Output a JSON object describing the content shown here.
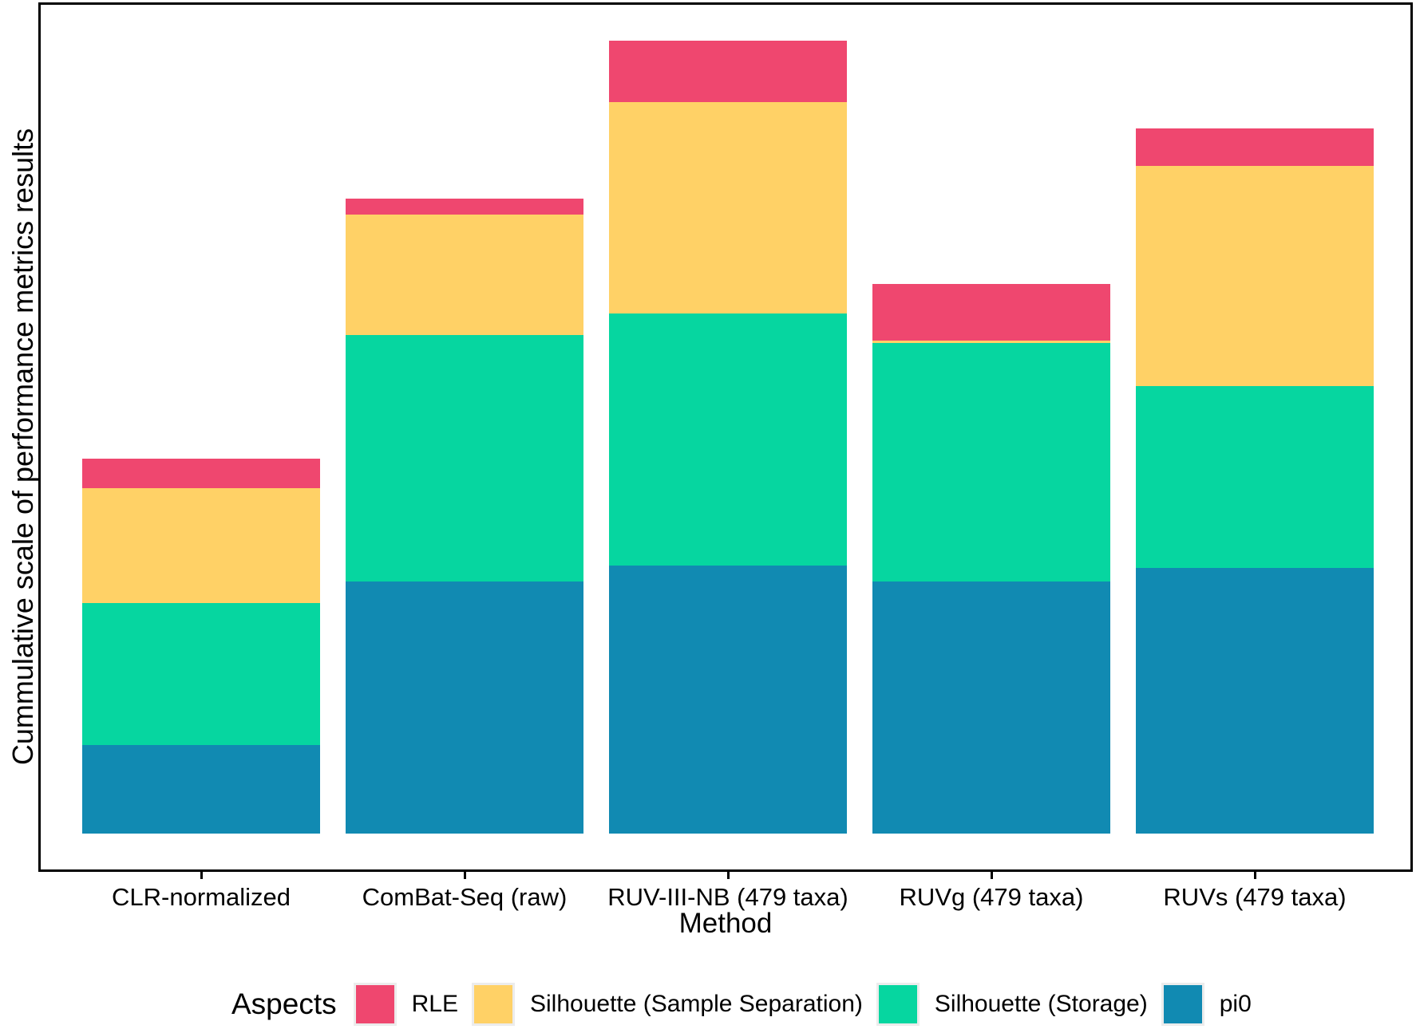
{
  "figure": {
    "x_axis_title": "Method",
    "y_axis_title": "Cummulative scale of performance metrics results"
  },
  "legend": {
    "title": "Aspects",
    "position": "bottom",
    "entries": [
      {
        "label": "RLE",
        "color": "#EF476F"
      },
      {
        "label": "Silhouette (Sample Separation)",
        "color": "#FFD166"
      },
      {
        "label": "Silhouette (Storage)",
        "color": "#06D6A0"
      },
      {
        "label": "pi0",
        "color": "#118AB2"
      }
    ]
  },
  "chart_data": {
    "type": "bar",
    "stacked": true,
    "title": "",
    "xlabel": "Method",
    "ylabel": "Cummulative scale of performance metrics results",
    "categories": [
      "CLR-normalized",
      "ComBat-Seq (raw)",
      "RUV-III-NB (479 taxa)",
      "RUVg (479 taxa)",
      "RUVs (479 taxa)"
    ],
    "series": [
      {
        "name": "pi0",
        "color": "#118AB2",
        "values": [
          0.33,
          0.94,
          1.0,
          0.94,
          0.99
        ]
      },
      {
        "name": "Silhouette (Storage)",
        "color": "#06D6A0",
        "values": [
          0.53,
          0.92,
          0.94,
          0.89,
          0.68
        ]
      },
      {
        "name": "Silhouette (Sample Separation)",
        "color": "#FFD166",
        "values": [
          0.43,
          0.45,
          0.79,
          0.01,
          0.82
        ]
      },
      {
        "name": "RLE",
        "color": "#EF476F",
        "values": [
          0.11,
          0.06,
          0.23,
          0.21,
          0.14
        ]
      }
    ],
    "stack_order_bottom_to_top": [
      "pi0",
      "Silhouette (Storage)",
      "Silhouette (Sample Separation)",
      "RLE"
    ],
    "totals": [
      1.4,
      2.37,
      2.96,
      2.05,
      2.63
    ],
    "y_axis_tick_labels_visible": false,
    "grid": false,
    "legend_position": "bottom"
  }
}
